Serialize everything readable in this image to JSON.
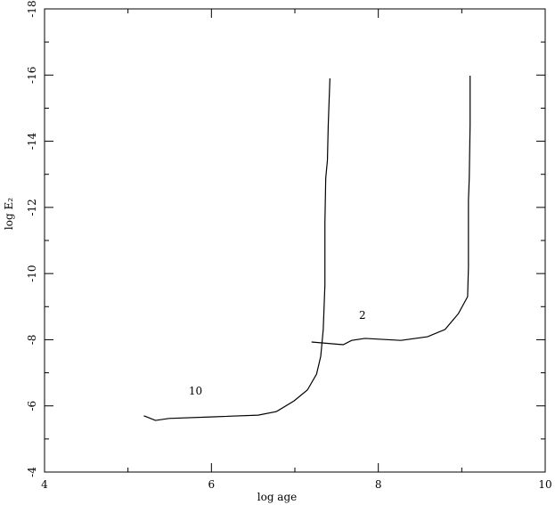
{
  "chart_data": {
    "type": "line",
    "xlabel": "log age",
    "ylabel": "log E₂",
    "xlim": [
      4,
      10
    ],
    "ylim": [
      -4,
      -18
    ],
    "xticks": [
      4,
      6,
      8,
      10
    ],
    "yticks": [
      -4,
      -6,
      -8,
      -10,
      -12,
      -14,
      -16,
      -18
    ],
    "xminor": [
      5,
      7,
      9
    ],
    "yminor": [
      -5,
      -7,
      -9,
      -11,
      -13,
      -15,
      -17
    ],
    "color": "#000000",
    "series": [
      {
        "name": "10",
        "x": [
          5.19,
          5.33,
          5.49,
          6.03,
          6.56,
          6.78,
          6.99,
          7.15,
          7.26,
          7.31,
          7.34,
          7.36,
          7.36,
          7.37,
          7.39,
          7.4,
          7.42
        ],
        "values": [
          -5.7,
          -5.56,
          -5.62,
          -5.67,
          -5.72,
          -5.83,
          -6.15,
          -6.48,
          -6.96,
          -7.5,
          -8.31,
          -9.65,
          -11.54,
          -12.89,
          -13.42,
          -14.5,
          -15.9
        ]
      },
      {
        "name": "2",
        "x": [
          7.2,
          7.58,
          7.68,
          7.84,
          8.27,
          8.59,
          8.8,
          8.96,
          9.07,
          9.08,
          9.08,
          9.09,
          9.1,
          9.1
        ],
        "values": [
          -7.93,
          -7.85,
          -7.98,
          -8.04,
          -7.98,
          -8.09,
          -8.31,
          -8.79,
          -9.3,
          -10.19,
          -12.21,
          -12.89,
          -14.5,
          -15.98
        ]
      }
    ],
    "annotations": [
      {
        "text": "10",
        "x": 5.81,
        "y": -6.34
      },
      {
        "text": "2",
        "x": 7.81,
        "y": -8.63
      }
    ]
  }
}
